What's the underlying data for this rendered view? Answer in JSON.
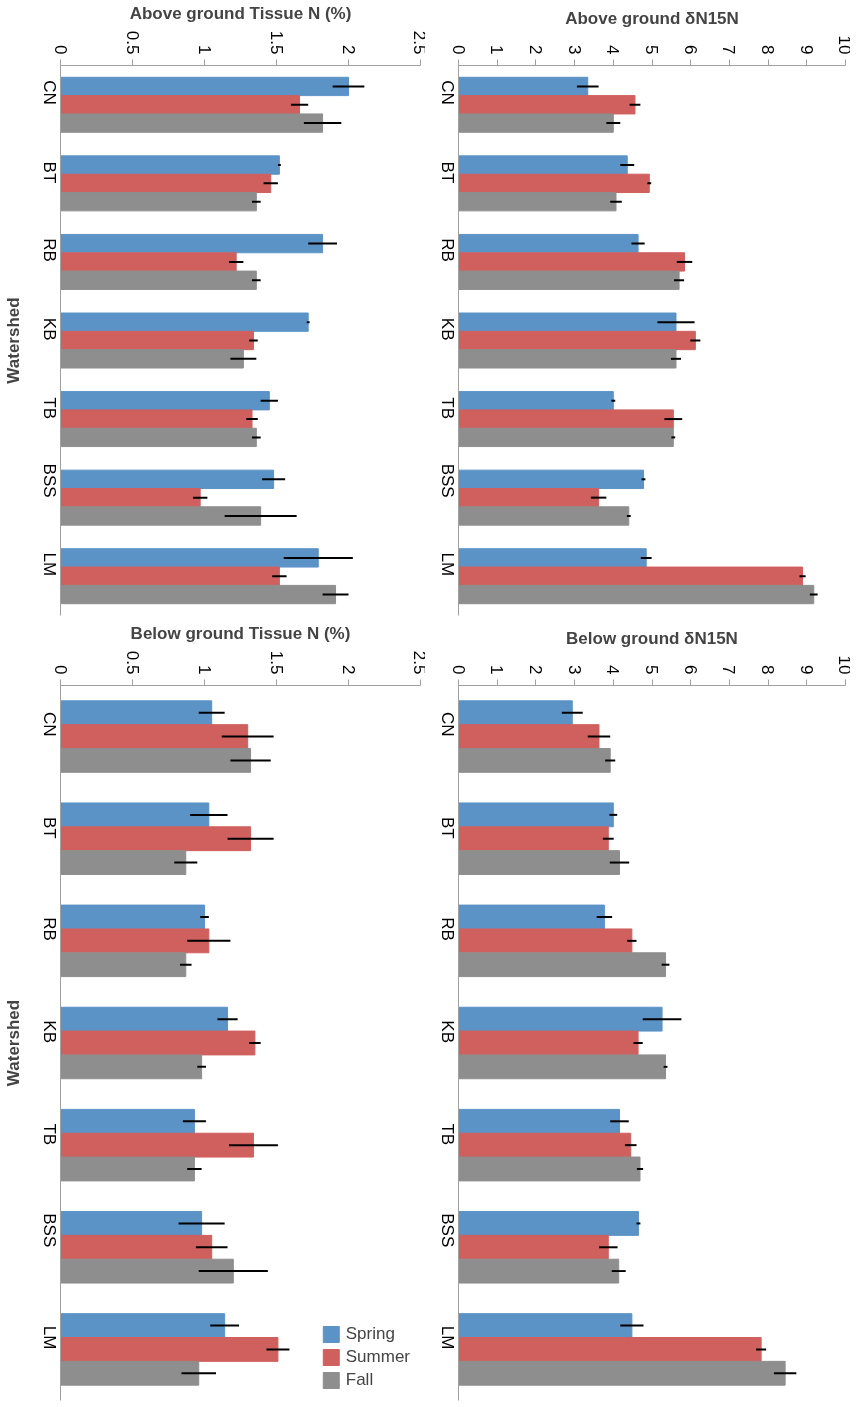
{
  "chart_data": [
    {
      "type": "bar",
      "orientation": "horizontal",
      "xlabel": "Above ground Tissue N (%)",
      "ylabel": "Watershed",
      "categories": [
        "CN",
        "BT",
        "RB",
        "KB",
        "TB",
        "BSS",
        "LM"
      ],
      "xlim": [
        0,
        2.5
      ],
      "xticks": [
        0,
        0.5,
        1,
        1.5,
        2,
        2.5
      ],
      "grid": false,
      "legend": false,
      "series": [
        {
          "color": "#5b93c7",
          "values": [
            2.0,
            1.52,
            1.82,
            1.72,
            1.45,
            1.48,
            1.79
          ],
          "errors": [
            0.11,
            0.01,
            0.1,
            0.01,
            0.06,
            0.08,
            0.24
          ]
        },
        {
          "color": "#d0605e",
          "values": [
            1.66,
            1.46,
            1.22,
            1.34,
            1.33,
            0.97,
            1.52
          ],
          "errors": [
            0.06,
            0.05,
            0.05,
            0.03,
            0.04,
            0.05,
            0.05
          ]
        },
        {
          "color": "#8e8e8e",
          "values": [
            1.82,
            1.36,
            1.36,
            1.27,
            1.36,
            1.39,
            1.91
          ],
          "errors": [
            0.13,
            0.03,
            0.03,
            0.09,
            0.03,
            0.25,
            0.09
          ]
        }
      ]
    },
    {
      "type": "bar",
      "orientation": "horizontal",
      "xlabel": "Above ground δN15N",
      "categories": [
        "CN",
        "BT",
        "RB",
        "KB",
        "TB",
        "BSS",
        "LM"
      ],
      "xlim": [
        0,
        10
      ],
      "xticks": [
        0,
        1,
        2,
        3,
        4,
        5,
        6,
        7,
        8,
        9,
        10
      ],
      "grid": false,
      "legend": false,
      "series": [
        {
          "color": "#5b93c7",
          "values": [
            3.34,
            4.36,
            4.64,
            5.62,
            4.0,
            4.78,
            4.85
          ],
          "errors": [
            0.28,
            0.18,
            0.17,
            0.48,
            0.05,
            0.05,
            0.14
          ]
        },
        {
          "color": "#d0605e",
          "values": [
            4.56,
            4.93,
            5.84,
            6.12,
            5.55,
            3.62,
            8.89
          ],
          "errors": [
            0.14,
            0.05,
            0.2,
            0.13,
            0.23,
            0.2,
            0.08
          ]
        },
        {
          "color": "#8e8e8e",
          "values": [
            4.0,
            4.07,
            5.7,
            5.62,
            5.55,
            4.4,
            9.18
          ],
          "errors": [
            0.18,
            0.15,
            0.13,
            0.13,
            0.05,
            0.05,
            0.1
          ]
        }
      ]
    },
    {
      "type": "bar",
      "orientation": "horizontal",
      "xlabel": "Below ground Tissue N (%)",
      "ylabel": "Watershed",
      "categories": [
        "CN",
        "BT",
        "RB",
        "KB",
        "TB",
        "BSS",
        "LM"
      ],
      "xlim": [
        0,
        2.5
      ],
      "xticks": [
        0,
        0.5,
        1,
        1.5,
        2,
        2.5
      ],
      "grid": false,
      "legend": "bottom right",
      "series": [
        {
          "name": "Spring",
          "color": "#5b93c7",
          "values": [
            1.05,
            1.03,
            1.0,
            1.16,
            0.93,
            0.98,
            1.14
          ],
          "errors": [
            0.09,
            0.13,
            0.03,
            0.07,
            0.08,
            0.16,
            0.1
          ]
        },
        {
          "name": "Summer",
          "color": "#d0605e",
          "values": [
            1.3,
            1.32,
            1.03,
            1.35,
            1.34,
            1.05,
            1.51
          ],
          "errors": [
            0.18,
            0.16,
            0.15,
            0.04,
            0.17,
            0.11,
            0.08
          ]
        },
        {
          "name": "Fall",
          "color": "#8e8e8e",
          "values": [
            1.32,
            0.87,
            0.87,
            0.98,
            0.93,
            1.2,
            0.96
          ],
          "errors": [
            0.14,
            0.08,
            0.04,
            0.03,
            0.05,
            0.24,
            0.12
          ]
        }
      ]
    },
    {
      "type": "bar",
      "orientation": "horizontal",
      "xlabel": "Below ground δN15N",
      "categories": [
        "CN",
        "BT",
        "RB",
        "KB",
        "TB",
        "BSS",
        "LM"
      ],
      "xlim": [
        0,
        10
      ],
      "xticks": [
        0,
        1,
        2,
        3,
        4,
        5,
        6,
        7,
        8,
        9,
        10
      ],
      "grid": false,
      "legend": false,
      "series": [
        {
          "color": "#5b93c7",
          "values": [
            2.94,
            4.0,
            3.77,
            5.26,
            4.16,
            4.65,
            4.48
          ],
          "errors": [
            0.27,
            0.1,
            0.2,
            0.5,
            0.24,
            0.05,
            0.3
          ]
        },
        {
          "color": "#d0605e",
          "values": [
            3.63,
            3.87,
            4.48,
            4.64,
            4.45,
            3.87,
            7.82
          ],
          "errors": [
            0.29,
            0.14,
            0.12,
            0.12,
            0.15,
            0.24,
            0.13
          ]
        },
        {
          "color": "#8e8e8e",
          "values": [
            3.92,
            4.16,
            5.35,
            5.35,
            4.69,
            4.14,
            8.44
          ],
          "errors": [
            0.13,
            0.25,
            0.1,
            0.05,
            0.08,
            0.18,
            0.29
          ]
        }
      ]
    }
  ]
}
